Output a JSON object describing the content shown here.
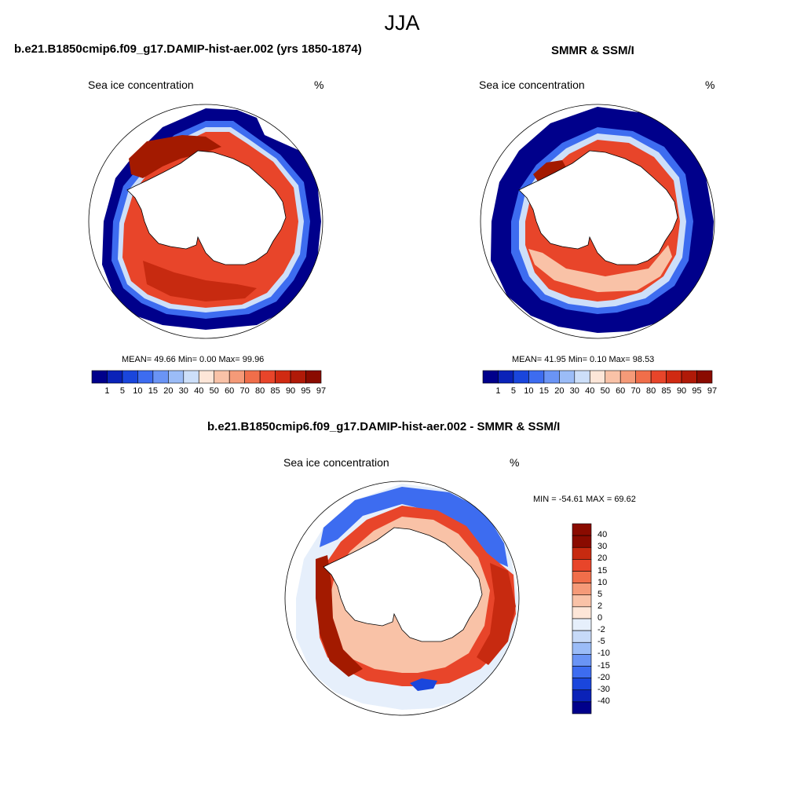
{
  "figure_title": "JJA",
  "colors": {
    "scale": [
      "#00008b",
      "#0a22b8",
      "#1a46dc",
      "#3d6cf0",
      "#6a94f5",
      "#9bbcf7",
      "#cddff9",
      "#fde6d8",
      "#f9c2a7",
      "#f59a78",
      "#f06e4a",
      "#e8452a",
      "#d02a12",
      "#b01a08",
      "#8a0b00"
    ],
    "diff_scale": [
      "#00008b",
      "#0a22b8",
      "#1a46dc",
      "#3d6cf0",
      "#6a94f5",
      "#9bbcf7",
      "#c7daf8",
      "#e6effb",
      "#fde6d8",
      "#f9c2a7",
      "#f59a78",
      "#f06e4a",
      "#e8452a",
      "#c72a10",
      "#8a0b00"
    ],
    "ice_high": "#a31a00",
    "ice_mid": "#e8452a",
    "ice_low": "#f9c2a7",
    "edge_blue": "#0a22b8",
    "dark_blue": "#00008b"
  },
  "panels": {
    "model": {
      "title": "b.e21.B1850cmip6.f09_g17.DAMIP-hist-aer.002 (yrs 1850-1874)",
      "variable": "Sea ice concentration",
      "units": "%",
      "stats": "MEAN=  49.66  Min=    0.00  Max=  99.96",
      "colorbar_labels": [
        "1",
        "5",
        "10",
        "15",
        "20",
        "30",
        "40",
        "50",
        "60",
        "70",
        "80",
        "85",
        "90",
        "95",
        "97"
      ]
    },
    "obs": {
      "title": "SMMR & SSM/I",
      "variable": "Sea ice concentration",
      "units": "%",
      "stats": "MEAN=  41.95  Min=    0.10  Max=  98.53",
      "colorbar_labels": [
        "1",
        "5",
        "10",
        "15",
        "20",
        "30",
        "40",
        "50",
        "60",
        "70",
        "80",
        "85",
        "90",
        "95",
        "97"
      ]
    },
    "diff": {
      "title": "b.e21.B1850cmip6.f09_g17.DAMIP-hist-aer.002 - SMMR & SSM/I",
      "variable": "Sea ice concentration",
      "units": "%",
      "stats": "MIN = -54.61 MAX =  69.62",
      "colorbar_labels": [
        "40",
        "30",
        "20",
        "15",
        "10",
        "5",
        "2",
        "0",
        "-2",
        "-5",
        "-10",
        "-15",
        "-20",
        "-30",
        "-40"
      ]
    }
  }
}
